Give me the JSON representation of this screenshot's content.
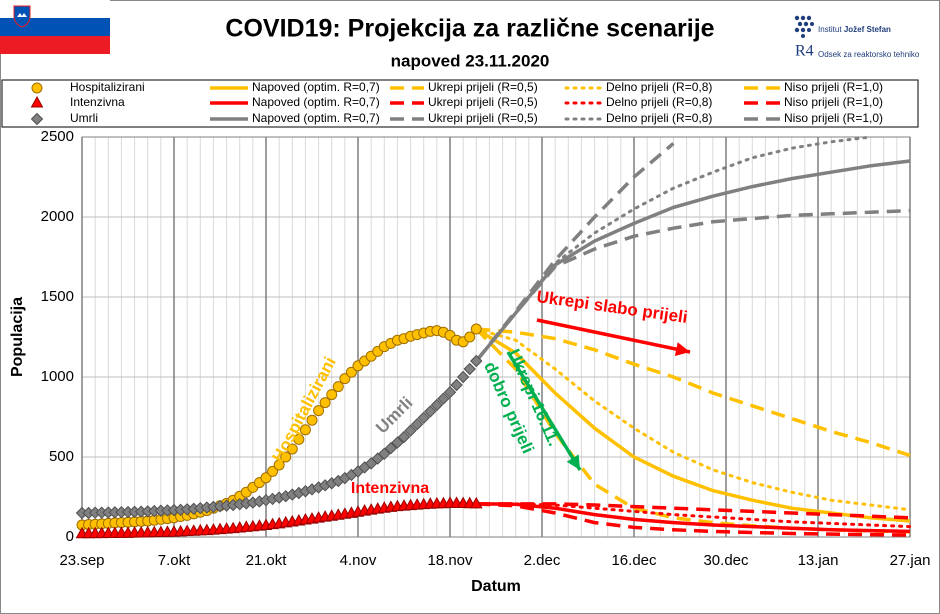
{
  "header": {
    "title": "COVID19: Projekcija za različne scenarije",
    "subtitle": "napoved 23.11.2020",
    "logo_institut": "Institut",
    "logo_name": "Jožef Stefan",
    "logo_r4": "R4",
    "logo_dept": "Odsek za reaktorsko tehniko"
  },
  "chart_data": {
    "type": "line",
    "x_label": "Datum",
    "y_label": "Populacija",
    "xlim": [
      "23.sep",
      "27.jan"
    ],
    "xticks": [
      "23.sep",
      "7.okt",
      "21.okt",
      "4.nov",
      "18.nov",
      "2.dec",
      "16.dec",
      "30.dec",
      "13.jan",
      "27.jan"
    ],
    "ylim": [
      0,
      2500
    ],
    "yticks": [
      0,
      500,
      1000,
      1500,
      2000,
      2500
    ],
    "grid": true,
    "annotations": [
      {
        "text": "Hospitalizirani",
        "color": "#ffc000"
      },
      {
        "text": "Umrli",
        "color": "#808080"
      },
      {
        "text": "Intenzivna",
        "color": "#ff0000"
      },
      {
        "text": "Ukrepi slabo prijeli",
        "color": "#ff0000"
      },
      {
        "text": "Ukrepi 16.11.",
        "color": "#00b050"
      },
      {
        "text": "dobro prijeli",
        "color": "#00b050"
      }
    ],
    "series": [
      {
        "name": "Hospitalizirani",
        "color": "#ffc000",
        "style": "circle",
        "x": [
          "23.sep",
          "24.sep",
          "25.sep",
          "26.sep",
          "27.sep",
          "28.sep",
          "29.sep",
          "30.sep",
          "1.okt",
          "2.okt",
          "3.okt",
          "4.okt",
          "5.okt",
          "6.okt",
          "7.okt",
          "8.okt",
          "9.okt",
          "10.okt",
          "11.okt",
          "12.okt",
          "13.okt",
          "14.okt",
          "15.okt",
          "16.okt",
          "17.okt",
          "18.okt",
          "19.okt",
          "20.okt",
          "21.okt",
          "22.okt",
          "23.okt",
          "24.okt",
          "25.okt",
          "26.okt",
          "27.okt",
          "28.okt",
          "29.okt",
          "30.okt",
          "31.okt",
          "1.nov",
          "2.nov",
          "3.nov",
          "4.nov",
          "5.nov",
          "6.nov",
          "7.nov",
          "8.nov",
          "9.nov",
          "10.nov",
          "11.nov",
          "12.nov",
          "13.nov",
          "14.nov",
          "15.nov",
          "16.nov",
          "17.nov",
          "18.nov",
          "19.nov",
          "20.nov",
          "21.nov",
          "22.nov"
        ],
        "values": [
          75,
          78,
          80,
          82,
          85,
          88,
          90,
          92,
          95,
          98,
          100,
          105,
          110,
          115,
          120,
          128,
          135,
          145,
          155,
          165,
          180,
          195,
          210,
          230,
          255,
          280,
          310,
          340,
          370,
          410,
          450,
          500,
          550,
          610,
          670,
          730,
          790,
          840,
          890,
          940,
          990,
          1030,
          1070,
          1100,
          1130,
          1160,
          1190,
          1210,
          1230,
          1240,
          1255,
          1265,
          1275,
          1285,
          1290,
          1280,
          1260,
          1230,
          1220,
          1250,
          1300
        ]
      },
      {
        "name": "Intenzivna",
        "color": "#ff0000",
        "style": "triangle",
        "x": [
          "23.sep",
          "24.sep",
          "25.sep",
          "26.sep",
          "27.sep",
          "28.sep",
          "29.sep",
          "30.sep",
          "1.okt",
          "2.okt",
          "3.okt",
          "4.okt",
          "5.okt",
          "6.okt",
          "7.okt",
          "8.okt",
          "9.okt",
          "10.okt",
          "11.okt",
          "12.okt",
          "13.okt",
          "14.okt",
          "15.okt",
          "16.okt",
          "17.okt",
          "18.okt",
          "19.okt",
          "20.okt",
          "21.okt",
          "22.okt",
          "23.okt",
          "24.okt",
          "25.okt",
          "26.okt",
          "27.okt",
          "28.okt",
          "29.okt",
          "30.okt",
          "31.okt",
          "1.nov",
          "2.nov",
          "3.nov",
          "4.nov",
          "5.nov",
          "6.nov",
          "7.nov",
          "8.nov",
          "9.nov",
          "10.nov",
          "11.nov",
          "12.nov",
          "13.nov",
          "14.nov",
          "15.nov",
          "16.nov",
          "17.nov",
          "18.nov",
          "19.nov",
          "20.nov",
          "21.nov",
          "22.nov"
        ],
        "values": [
          20,
          20,
          21,
          21,
          22,
          22,
          23,
          23,
          24,
          25,
          26,
          27,
          28,
          29,
          30,
          32,
          34,
          36,
          38,
          40,
          43,
          46,
          49,
          52,
          56,
          60,
          64,
          68,
          72,
          77,
          82,
          88,
          94,
          100,
          106,
          112,
          118,
          124,
          130,
          136,
          142,
          148,
          155,
          162,
          168,
          174,
          180,
          185,
          190,
          193,
          196,
          199,
          202,
          205,
          207,
          208,
          210,
          210,
          209,
          208,
          207
        ]
      },
      {
        "name": "Umrli",
        "color": "#808080",
        "style": "diamond",
        "x": [
          "23.sep",
          "24.sep",
          "25.sep",
          "26.sep",
          "27.sep",
          "28.sep",
          "29.sep",
          "30.sep",
          "1.okt",
          "2.okt",
          "3.okt",
          "4.okt",
          "5.okt",
          "6.okt",
          "7.okt",
          "8.okt",
          "9.okt",
          "10.okt",
          "11.okt",
          "12.okt",
          "13.okt",
          "14.okt",
          "15.okt",
          "16.okt",
          "17.okt",
          "18.okt",
          "19.okt",
          "20.okt",
          "21.okt",
          "22.okt",
          "23.okt",
          "24.okt",
          "25.okt",
          "26.okt",
          "27.okt",
          "28.okt",
          "29.okt",
          "30.okt",
          "31.okt",
          "1.nov",
          "2.nov",
          "3.nov",
          "4.nov",
          "5.nov",
          "6.nov",
          "7.nov",
          "8.nov",
          "9.nov",
          "10.nov",
          "11.nov",
          "12.nov",
          "13.nov",
          "14.nov",
          "15.nov",
          "16.nov",
          "17.nov",
          "18.nov",
          "19.nov",
          "20.nov",
          "21.nov",
          "22.nov"
        ],
        "values": [
          150,
          150,
          152,
          152,
          153,
          154,
          155,
          156,
          157,
          158,
          160,
          162,
          164,
          166,
          168,
          170,
          173,
          176,
          180,
          184,
          188,
          192,
          196,
          200,
          205,
          210,
          215,
          222,
          230,
          238,
          246,
          255,
          265,
          275,
          286,
          298,
          310,
          323,
          336,
          350,
          368,
          388,
          410,
          435,
          460,
          490,
          520,
          555,
          590,
          625,
          665,
          705,
          745,
          785,
          825,
          865,
          905,
          950,
          1000,
          1050,
          1100
        ]
      },
      {
        "name": "Napoved (optim. R=0,7)",
        "color": "#ffc000",
        "style": "solid",
        "x": [
          "22.nov",
          "28.nov",
          "4.dec",
          "10.dec",
          "16.dec",
          "22.dec",
          "28.dec",
          "3.jan",
          "9.jan",
          "15.jan",
          "21.jan",
          "27.jan"
        ],
        "values": [
          1300,
          1150,
          900,
          680,
          500,
          380,
          290,
          230,
          180,
          150,
          120,
          100
        ]
      },
      {
        "name": "Ukrepi prijeli (R=0,5)",
        "color": "#ffc000",
        "style": "dashed",
        "x": [
          "22.nov",
          "28.nov",
          "4.dec",
          "10.dec",
          "16.dec",
          "22.dec",
          "28.dec",
          "3.jan",
          "9.jan",
          "15.jan",
          "21.jan",
          "27.jan"
        ],
        "values": [
          1300,
          1050,
          650,
          330,
          180,
          120,
          90,
          70,
          55,
          45,
          38,
          32
        ]
      },
      {
        "name": "Delno prijeli (R=0,8)",
        "color": "#ffc000",
        "style": "dotted",
        "x": [
          "22.nov",
          "28.nov",
          "4.dec",
          "10.dec",
          "16.dec",
          "22.dec",
          "28.dec",
          "3.jan",
          "9.jan",
          "15.jan",
          "21.jan",
          "27.jan"
        ],
        "values": [
          1300,
          1230,
          1050,
          850,
          680,
          530,
          420,
          340,
          280,
          230,
          200,
          170
        ]
      },
      {
        "name": "Niso prijeli (R=1,0)",
        "color": "#ffc000",
        "style": "dashed",
        "x": [
          "22.nov",
          "28.nov",
          "4.dec",
          "10.dec",
          "16.dec",
          "22.dec",
          "28.dec",
          "3.jan",
          "9.jan",
          "15.jan",
          "21.jan",
          "27.jan"
        ],
        "values": [
          1300,
          1280,
          1240,
          1170,
          1080,
          1000,
          900,
          820,
          740,
          660,
          590,
          510
        ]
      },
      {
        "name": "Napoved (optim. R=0,7)",
        "color": "#ff0000",
        "style": "solid",
        "x": [
          "22.nov",
          "28.nov",
          "4.dec",
          "10.dec",
          "16.dec",
          "22.dec",
          "28.dec",
          "3.jan",
          "9.jan",
          "15.jan",
          "21.jan",
          "27.jan"
        ],
        "values": [
          207,
          205,
          180,
          140,
          110,
          90,
          75,
          65,
          55,
          45,
          40,
          35
        ]
      },
      {
        "name": "Ukrepi prijeli (R=0,5)",
        "color": "#ff0000",
        "style": "dashed",
        "x": [
          "22.nov",
          "28.nov",
          "4.dec",
          "10.dec",
          "16.dec",
          "22.dec",
          "28.dec",
          "3.jan",
          "9.jan",
          "15.jan",
          "21.jan",
          "27.jan"
        ],
        "values": [
          207,
          195,
          150,
          90,
          60,
          45,
          35,
          28,
          22,
          18,
          15,
          12
        ]
      },
      {
        "name": "Delno prijeli (R=0,8)",
        "color": "#ff0000",
        "style": "dotted",
        "x": [
          "22.nov",
          "28.nov",
          "4.dec",
          "10.dec",
          "16.dec",
          "22.dec",
          "28.dec",
          "3.jan",
          "9.jan",
          "15.jan",
          "21.jan",
          "27.jan"
        ],
        "values": [
          207,
          207,
          200,
          180,
          160,
          140,
          125,
          110,
          95,
          85,
          75,
          65
        ]
      },
      {
        "name": "Niso prijeli (R=1,0)",
        "color": "#ff0000",
        "style": "dashed",
        "x": [
          "22.nov",
          "28.nov",
          "4.dec",
          "10.dec",
          "16.dec",
          "22.dec",
          "28.dec",
          "3.jan",
          "9.jan",
          "15.jan",
          "21.jan",
          "27.jan"
        ],
        "values": [
          207,
          207,
          207,
          200,
          190,
          180,
          170,
          160,
          150,
          140,
          130,
          120
        ]
      },
      {
        "name": "Napoved (optim. R=0,7)",
        "color": "#808080",
        "style": "solid",
        "x": [
          "22.nov",
          "28.nov",
          "4.dec",
          "10.dec",
          "16.dec",
          "22.dec",
          "28.dec",
          "3.jan",
          "9.jan",
          "15.jan",
          "21.jan",
          "27.jan"
        ],
        "values": [
          1100,
          1400,
          1700,
          1850,
          1960,
          2060,
          2130,
          2190,
          2240,
          2280,
          2320,
          2350
        ]
      },
      {
        "name": "Ukrepi prijeli (R=0,5)",
        "color": "#808080",
        "style": "dashed",
        "x": [
          "22.nov",
          "28.nov",
          "4.dec",
          "10.dec",
          "16.dec",
          "22.dec",
          "28.dec",
          "3.jan",
          "9.jan",
          "15.jan",
          "21.jan",
          "27.jan"
        ],
        "values": [
          1100,
          1400,
          1690,
          1800,
          1880,
          1930,
          1970,
          1990,
          2010,
          2020,
          2030,
          2040
        ]
      },
      {
        "name": "Delno prijeli (R=0,8)",
        "color": "#808080",
        "style": "dotted",
        "x": [
          "22.nov",
          "28.nov",
          "4.dec",
          "10.dec",
          "16.dec",
          "22.dec",
          "28.dec",
          "3.jan",
          "9.jan",
          "15.jan",
          "21.jan",
          "27.jan"
        ],
        "values": [
          1100,
          1400,
          1710,
          1900,
          2050,
          2180,
          2280,
          2370,
          2430,
          2470,
          2500,
          null
        ]
      },
      {
        "name": "Niso prijeli (R=1,0)",
        "color": "#808080",
        "style": "dashed",
        "x": [
          "22.nov",
          "28.nov",
          "4.dec",
          "10.dec",
          "16.dec",
          "22.dec",
          "28.dec",
          "3.jan",
          "9.jan",
          "15.jan",
          "21.jan",
          "27.jan"
        ],
        "values": [
          1100,
          1410,
          1730,
          2000,
          2250,
          2460,
          null,
          null,
          null,
          null,
          null,
          null
        ]
      }
    ]
  }
}
